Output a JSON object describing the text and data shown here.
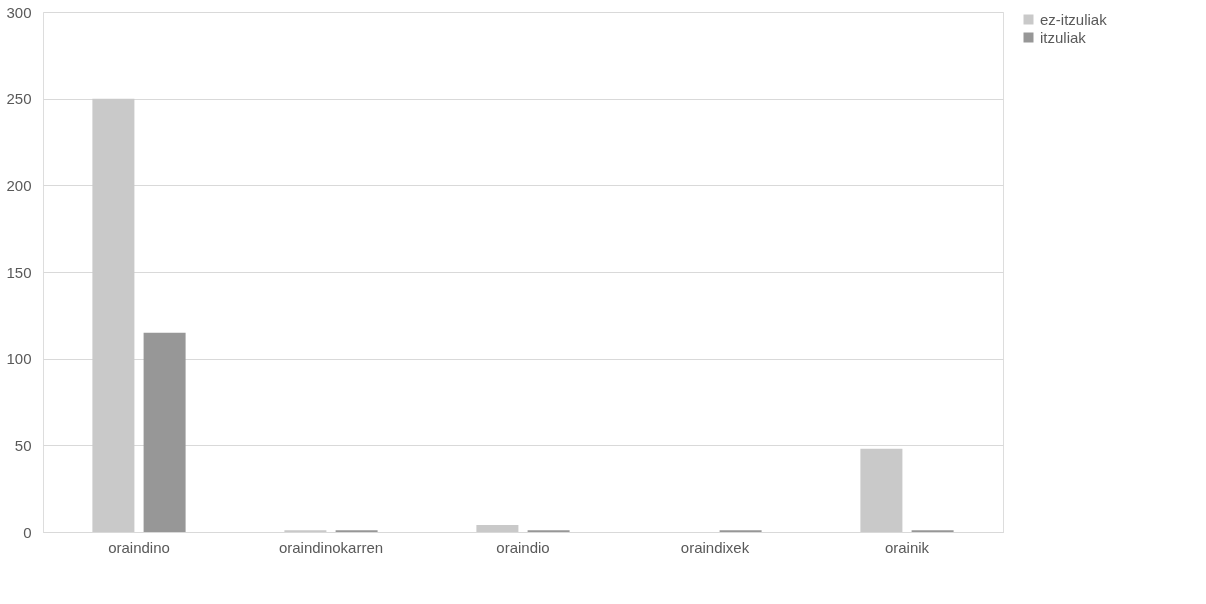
{
  "chart_data": {
    "type": "bar",
    "categories": [
      "oraindino",
      "oraindinokarren",
      "oraindio",
      "oraindixek",
      "orainik"
    ],
    "series": [
      {
        "name": "ez-itzuliak",
        "color": "#c9c9c9",
        "values": [
          250,
          1,
          4,
          0,
          48
        ]
      },
      {
        "name": "itzuliak",
        "color": "#979797",
        "values": [
          115,
          1,
          1,
          1,
          1
        ]
      }
    ],
    "ylim": [
      0,
      300
    ],
    "yticks": [
      0,
      50,
      100,
      150,
      200,
      250,
      300
    ],
    "grid": "y",
    "legend": "right"
  }
}
